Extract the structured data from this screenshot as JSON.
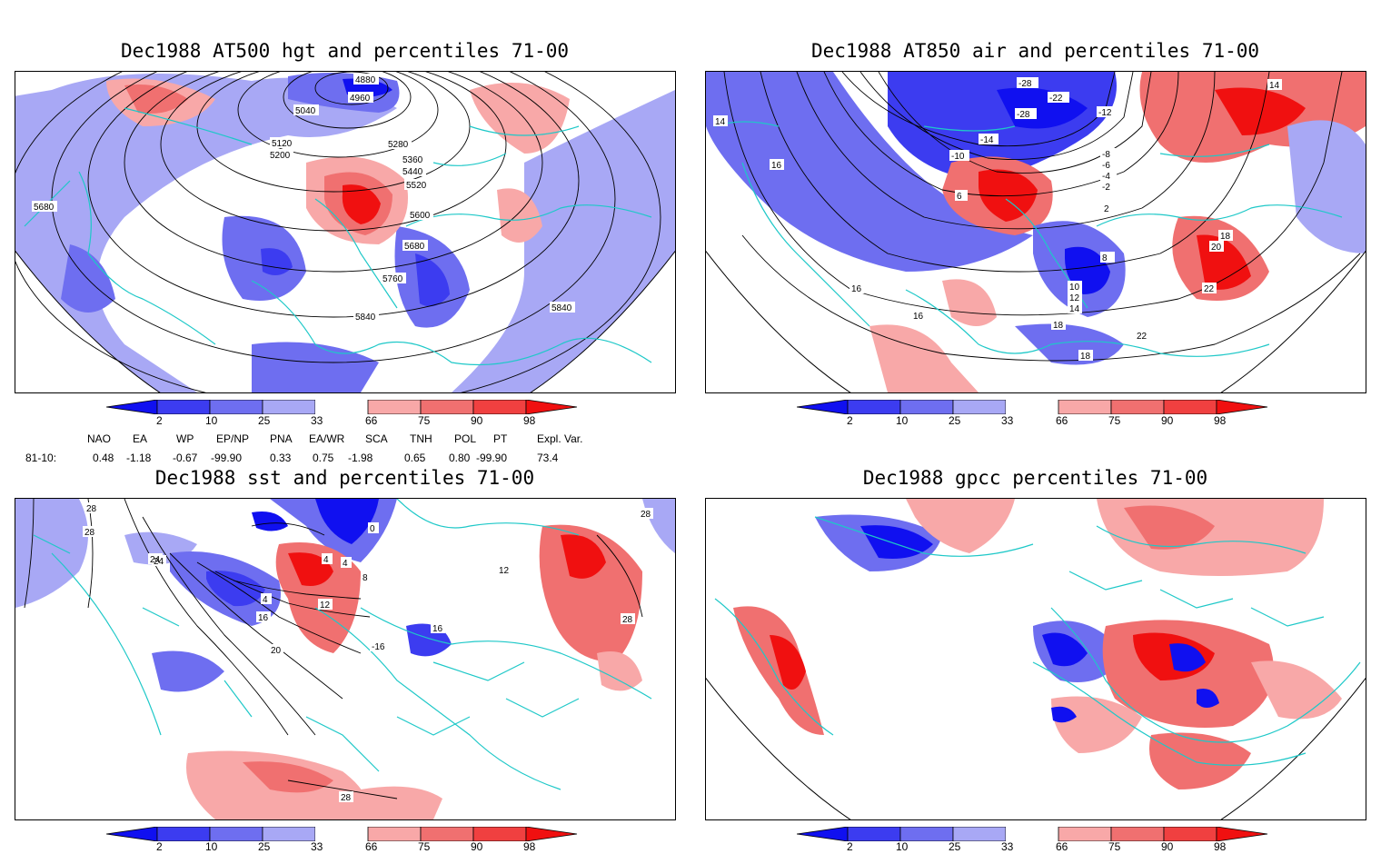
{
  "panels": [
    {
      "id": "p1",
      "title": "Dec1988 AT500 hgt and percentiles 71-00",
      "contour_labels": [
        "4880",
        "4960",
        "5040",
        "5120",
        "5200",
        "5280",
        "5360",
        "5440",
        "5520",
        "5600",
        "5680",
        "5680",
        "5760",
        "5840",
        "5840"
      ]
    },
    {
      "id": "p2",
      "title": "Dec1988 AT850 air and percentiles 71-00",
      "contour_labels": [
        "-28",
        "-22",
        "-28",
        "-12",
        "-14",
        "-10",
        "-8",
        "-6",
        "-4",
        "-2",
        "2",
        "6",
        "8",
        "10",
        "12",
        "14",
        "14",
        "16",
        "16",
        "16",
        "18",
        "20",
        "22",
        "22",
        "18",
        "18",
        "14"
      ]
    },
    {
      "id": "p3",
      "title": "Dec1988 sst and percentiles 71-00",
      "contour_labels": [
        "28",
        "28",
        "24",
        "0",
        "4",
        "4",
        "8",
        "12",
        "4",
        "16",
        "16",
        "20",
        "24",
        "-16",
        "28",
        "28",
        "28",
        "12"
      ]
    },
    {
      "id": "p4",
      "title": "Dec1988 gpcc percentiles 71-00",
      "contour_labels": []
    }
  ],
  "colorbar": {
    "ticks": [
      "2",
      "10",
      "25",
      "33",
      "66",
      "75",
      "90",
      "98"
    ],
    "colors": [
      "#1010f0",
      "#3c3cf0",
      "#6e6ef0",
      "#a8a8f5",
      "#ffffff",
      "#f8a8a8",
      "#f07070",
      "#f04040",
      "#f01010"
    ]
  },
  "indices": {
    "headers": [
      "NAO",
      "EA",
      "WP",
      "EP/NP",
      "PNA",
      "EA/WR",
      "SCA",
      "TNH",
      "POL",
      "PT",
      "Expl. Var."
    ],
    "row_label": "81-10:",
    "values": [
      "0.48",
      "-1.18",
      "-0.67",
      "-99.90",
      "0.33",
      "0.75",
      "-1.98",
      "0.65",
      "0.80",
      "-99.90",
      "73.4"
    ]
  }
}
